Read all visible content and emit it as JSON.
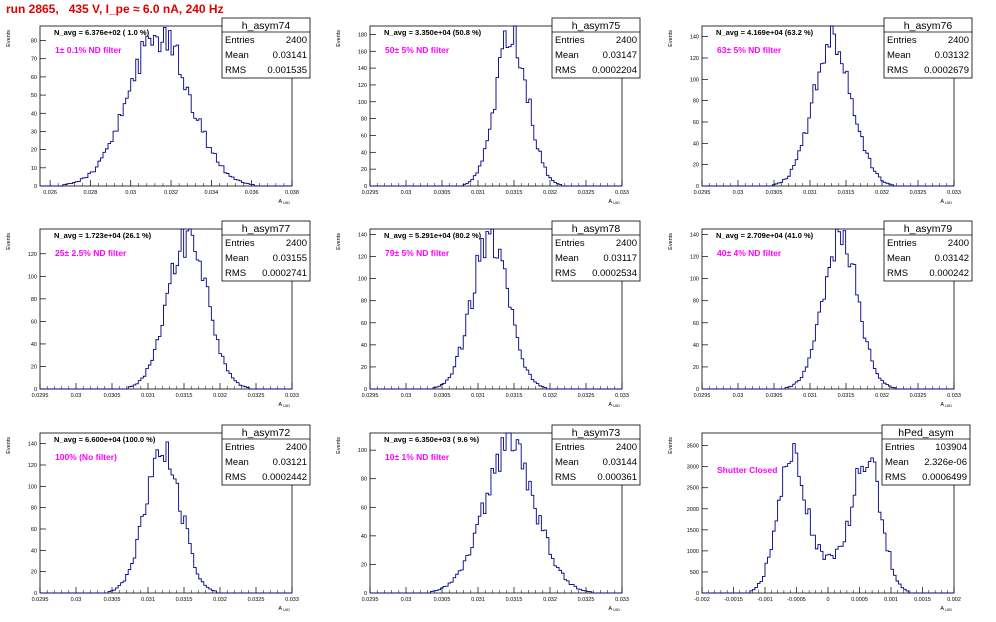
{
  "header": {
    "title": "run 2865,   435 V, I_pe ≈ 6.0 nA, 240 Hz"
  },
  "stat_labels": {
    "entries": "Entries",
    "mean": "Mean",
    "rms": "RMS"
  },
  "axis": {
    "ylabel": "Events",
    "xlabel": "A",
    "xlabel_sub": "UID"
  },
  "colors": {
    "hist": "#00008b",
    "annotation": "#ff00ff",
    "title": "#e00000"
  },
  "chart_data": [
    {
      "type": "bar",
      "name": "h_asym74",
      "navg": "N_avg = 6.376e+02 ( 1.0 %)",
      "filter": "1± 0.1% ND filter",
      "entries": "2400",
      "mean": "0.03141",
      "rms": "0.001535",
      "xlim": [
        0.0255,
        0.038
      ],
      "ylim": [
        0,
        88
      ],
      "xticks": [
        "0.026",
        "0.028",
        "0.03",
        "0.032",
        "0.034",
        "0.036",
        "0.038"
      ],
      "xtick_values": [
        0.026,
        0.028,
        0.03,
        0.032,
        0.034,
        0.036,
        0.038
      ],
      "yticks": [
        0,
        10,
        20,
        30,
        40,
        50,
        60,
        70,
        80
      ],
      "mu": 0.03141,
      "sigma": 0.001535,
      "peak": 82,
      "seed": 74
    },
    {
      "type": "bar",
      "name": "h_asym75",
      "navg": "N_avg = 3.350e+04 (50.8 %)",
      "filter": "50± 5% ND filter",
      "entries": "2400",
      "mean": "0.03147",
      "rms": "0.0002204",
      "xlim": [
        0.0295,
        0.033
      ],
      "ylim": [
        0,
        190
      ],
      "xticks": [
        "0.0295",
        "0.03",
        "0.0305",
        "0.031",
        "0.0315",
        "0.032",
        "0.0325",
        "0.033"
      ],
      "xtick_values": [
        0.0295,
        0.03,
        0.0305,
        0.031,
        0.0315,
        0.032,
        0.0325,
        0.033
      ],
      "yticks": [
        0,
        20,
        40,
        60,
        80,
        100,
        120,
        140,
        160,
        180
      ],
      "mu": 0.03147,
      "sigma": 0.0002204,
      "peak": 182,
      "seed": 75
    },
    {
      "type": "bar",
      "name": "h_asym76",
      "navg": "N_avg = 4.169e+04 (63.2 %)",
      "filter": "63± 5% ND filter",
      "entries": "2400",
      "mean": "0.03132",
      "rms": "0.0002679",
      "xlim": [
        0.0295,
        0.033
      ],
      "ylim": [
        0,
        150
      ],
      "xticks": [
        "0.0295",
        "0.03",
        "0.0305",
        "0.031",
        "0.0315",
        "0.032",
        "0.0325",
        "0.033"
      ],
      "xtick_values": [
        0.0295,
        0.03,
        0.0305,
        0.031,
        0.0315,
        0.032,
        0.0325,
        0.033
      ],
      "yticks": [
        0,
        20,
        40,
        60,
        80,
        100,
        120,
        140
      ],
      "mu": 0.03132,
      "sigma": 0.0002679,
      "peak": 142,
      "seed": 76
    },
    {
      "type": "bar",
      "name": "h_asym77",
      "navg": "N_avg = 1.723e+04 (26.1 %)",
      "filter": "25± 2.5% ND filter",
      "entries": "2400",
      "mean": "0.03155",
      "rms": "0.0002741",
      "xlim": [
        0.0295,
        0.033
      ],
      "ylim": [
        0,
        142
      ],
      "xticks": [
        "0.0295",
        "0.03",
        "0.0305",
        "0.031",
        "0.0315",
        "0.032",
        "0.0325",
        "0.033"
      ],
      "xtick_values": [
        0.0295,
        0.03,
        0.0305,
        0.031,
        0.0315,
        0.032,
        0.0325,
        0.033
      ],
      "yticks": [
        0,
        20,
        40,
        60,
        80,
        100,
        120
      ],
      "mu": 0.03155,
      "sigma": 0.0002741,
      "peak": 135,
      "seed": 77
    },
    {
      "type": "bar",
      "name": "h_asym78",
      "navg": "N_avg = 5.291e+04 (80.2 %)",
      "filter": "79± 5% ND filter",
      "entries": "2400",
      "mean": "0.03117",
      "rms": "0.0002534",
      "xlim": [
        0.0295,
        0.033
      ],
      "ylim": [
        0,
        145
      ],
      "xticks": [
        "0.0295",
        "0.03",
        "0.0305",
        "0.031",
        "0.0315",
        "0.032",
        "0.0325",
        "0.033"
      ],
      "xtick_values": [
        0.0295,
        0.03,
        0.0305,
        0.031,
        0.0315,
        0.032,
        0.0325,
        0.033
      ],
      "yticks": [
        0,
        20,
        40,
        60,
        80,
        100,
        120,
        140
      ],
      "mu": 0.03117,
      "sigma": 0.0002534,
      "peak": 138,
      "seed": 78
    },
    {
      "type": "bar",
      "name": "h_asym79",
      "navg": "N_avg = 2.709e+04 (41.0 %)",
      "filter": "40± 4% ND filter",
      "entries": "2400",
      "mean": "0.03142",
      "rms": "0.000242",
      "xlim": [
        0.0295,
        0.033
      ],
      "ylim": [
        0,
        145
      ],
      "xticks": [
        "0.0295",
        "0.03",
        "0.0305",
        "0.031",
        "0.0315",
        "0.032",
        "0.0325",
        "0.033"
      ],
      "xtick_values": [
        0.0295,
        0.03,
        0.0305,
        0.031,
        0.0315,
        0.032,
        0.0325,
        0.033
      ],
      "yticks": [
        0,
        20,
        40,
        60,
        80,
        100,
        120,
        140
      ],
      "mu": 0.03142,
      "sigma": 0.000242,
      "peak": 140,
      "seed": 79
    },
    {
      "type": "bar",
      "name": "h_asym72",
      "navg": "N_avg = 6.600e+04 (100.0 %)",
      "filter": "100% (No filter)",
      "entries": "2400",
      "mean": "0.03121",
      "rms": "0.0002442",
      "xlim": [
        0.0295,
        0.033
      ],
      "ylim": [
        0,
        150
      ],
      "xticks": [
        "0.0295",
        "0.03",
        "0.0305",
        "0.031",
        "0.0315",
        "0.032",
        "0.0325",
        "0.033"
      ],
      "xtick_values": [
        0.0295,
        0.03,
        0.0305,
        0.031,
        0.0315,
        0.032,
        0.0325,
        0.033
      ],
      "yticks": [
        0,
        20,
        40,
        60,
        80,
        100,
        120,
        140
      ],
      "mu": 0.03121,
      "sigma": 0.0002442,
      "peak": 138,
      "seed": 72
    },
    {
      "type": "bar",
      "name": "h_asym73",
      "navg": "N_avg = 6.350e+03 ( 9.6 %)",
      "filter": "10± 1% ND filter",
      "entries": "2400",
      "mean": "0.03144",
      "rms": "0.000361",
      "xlim": [
        0.0295,
        0.033
      ],
      "ylim": [
        0,
        112
      ],
      "xticks": [
        "0.0295",
        "0.03",
        "0.0305",
        "0.031",
        "0.0315",
        "0.032",
        "0.0325",
        "0.033"
      ],
      "xtick_values": [
        0.0295,
        0.03,
        0.0305,
        0.031,
        0.0315,
        0.032,
        0.0325,
        0.033
      ],
      "yticks": [
        0,
        20,
        40,
        60,
        80,
        100
      ],
      "mu": 0.03144,
      "sigma": 0.000361,
      "peak": 100,
      "seed": 73
    },
    {
      "type": "bar",
      "name": "hPed_asym",
      "navg": "",
      "filter": "Shutter Closed",
      "entries": "103904",
      "mean": "2.326e-06",
      "rms": "0.0006499",
      "xlim": [
        -0.002,
        0.002
      ],
      "ylim": [
        0,
        3800
      ],
      "xticks": [
        "-0.002",
        "-0.0015",
        "-0.001",
        "-0.0005",
        "0",
        "0.0005",
        "0.001",
        "0.0015",
        "0.002"
      ],
      "xtick_values": [
        -0.002,
        -0.0015,
        -0.001,
        -0.0005,
        0,
        0.0005,
        0.001,
        0.0015,
        0.002
      ],
      "yticks": [
        0,
        500,
        1000,
        1500,
        2000,
        2500,
        3000,
        3500
      ],
      "bimodal": true,
      "peaks": [
        -0.00058,
        0.00062
      ],
      "sigma": 0.00022,
      "peak": 3700,
      "seed": 99
    }
  ]
}
